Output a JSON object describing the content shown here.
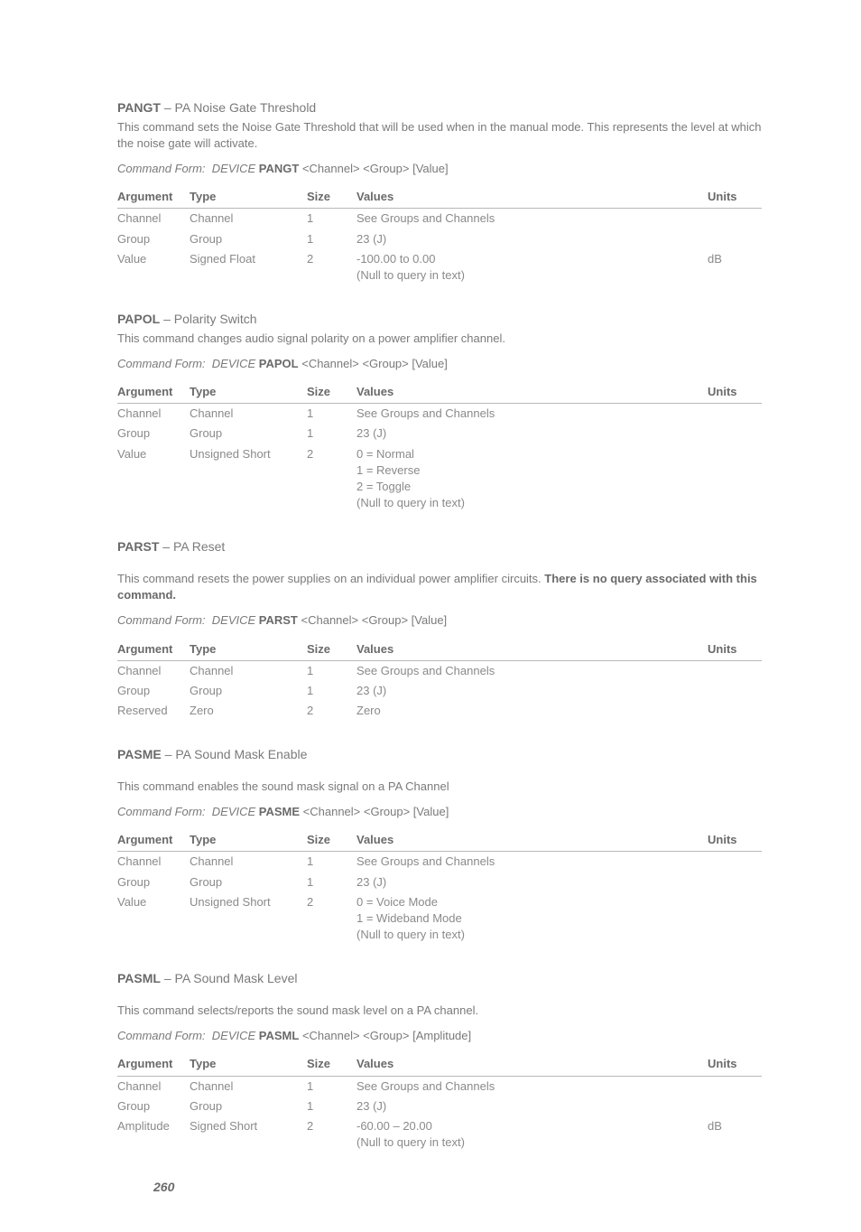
{
  "page_number": "260",
  "headers": {
    "argument": "Argument",
    "type": "Type",
    "size": "Size",
    "values": "Values",
    "units": "Units"
  },
  "form_label": "Command Form:",
  "device_label": "DEVICE",
  "commands": [
    {
      "name": "PANGT",
      "subtitle": " – PA Noise Gate Threshold",
      "desc_plain": "This command sets the Noise Gate Threshold that will be used when in the manual mode.  This represents the level at which the noise gate will activate.",
      "desc_bold": "",
      "form_args": " <Channel> <Group> [Value]",
      "rows": [
        {
          "arg": "Channel",
          "type": "Channel",
          "size": "1",
          "values": [
            "See Groups and Channels"
          ],
          "units": ""
        },
        {
          "arg": "Group",
          "type": "Group",
          "size": "1",
          "values": [
            "23 (J)"
          ],
          "units": ""
        },
        {
          "arg": "Value",
          "type": "Signed Float",
          "size": "2",
          "values": [
            "-100.00 to 0.00",
            "(Null to query in text)"
          ],
          "units": "dB"
        }
      ]
    },
    {
      "name": "PAPOL",
      "subtitle": " – Polarity Switch",
      "desc_plain": "This command changes audio signal polarity on a power amplifier channel.",
      "desc_bold": "",
      "form_args": " <Channel> <Group> [Value]",
      "rows": [
        {
          "arg": "Channel",
          "type": "Channel",
          "size": "1",
          "values": [
            "See Groups and Channels"
          ],
          "units": ""
        },
        {
          "arg": "Group",
          "type": "Group",
          "size": "1",
          "values": [
            "23 (J)"
          ],
          "units": ""
        },
        {
          "arg": "Value",
          "type": "Unsigned Short",
          "size": "2",
          "values": [
            "0 = Normal",
            "1 = Reverse",
            "2 = Toggle",
            "(Null to query in text)"
          ],
          "units": ""
        }
      ]
    },
    {
      "name": "PARST",
      "subtitle": " – PA Reset",
      "desc_plain": "This command resets the power supplies on an individual power amplifier circuits. ",
      "desc_bold": "There is no query associated with this command.",
      "spaced": true,
      "form_args": " <Channel> <Group> [Value]",
      "rows": [
        {
          "arg": "Channel",
          "type": "Channel",
          "size": "1",
          "values": [
            "See Groups and Channels"
          ],
          "units": ""
        },
        {
          "arg": "Group",
          "type": "Group",
          "size": "1",
          "values": [
            "23 (J)"
          ],
          "units": ""
        },
        {
          "arg": "Reserved",
          "type": "Zero",
          "size": "2",
          "values": [
            "Zero"
          ],
          "units": ""
        }
      ]
    },
    {
      "name": "PASME",
      "subtitle": " – PA Sound Mask Enable",
      "desc_plain": "This command enables the sound mask signal on a PA Channel",
      "desc_bold": "",
      "spaced": true,
      "form_args": " <Channel> <Group> [Value]",
      "rows": [
        {
          "arg": "Channel",
          "type": "Channel",
          "size": "1",
          "values": [
            "See Groups and Channels"
          ],
          "units": ""
        },
        {
          "arg": "Group",
          "type": "Group",
          "size": "1",
          "values": [
            "23 (J)"
          ],
          "units": ""
        },
        {
          "arg": "Value",
          "type": "Unsigned Short",
          "size": "2",
          "values": [
            "0 = Voice Mode",
            "1 = Wideband Mode",
            "(Null to query in text)"
          ],
          "units": ""
        }
      ]
    },
    {
      "name": "PASML",
      "subtitle": " – PA Sound Mask Level",
      "desc_plain": "This command selects/reports the sound mask level on a PA channel.",
      "desc_bold": "",
      "spaced": true,
      "form_args": " <Channel> <Group> [Amplitude]",
      "rows": [
        {
          "arg": "Channel",
          "type": "Channel",
          "size": "1",
          "values": [
            "See Groups and Channels"
          ],
          "units": ""
        },
        {
          "arg": "Group",
          "type": "Group",
          "size": "1",
          "values": [
            "23 (J)"
          ],
          "units": ""
        },
        {
          "arg": "Amplitude",
          "type": "Signed Short",
          "size": "2",
          "values": [
            "-60.00 – 20.00",
            "(Null to query in text)"
          ],
          "units": "dB"
        }
      ]
    }
  ]
}
